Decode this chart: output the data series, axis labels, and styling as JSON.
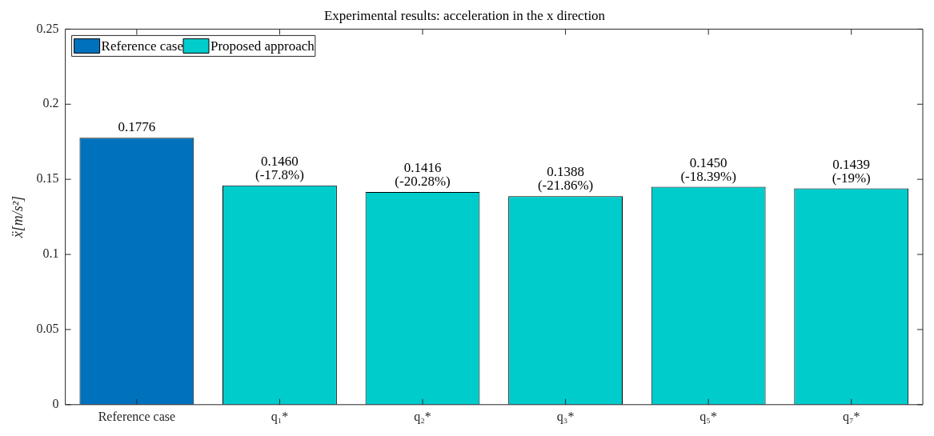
{
  "chart_data": {
    "type": "bar",
    "title": "Experimental results: acceleration in the x direction",
    "ylabel": "ẍ[m/s²]",
    "categories": [
      "Reference case",
      "q₁*",
      "q₂*",
      "q₃*",
      "q₅*",
      "q₇*"
    ],
    "series": [
      {
        "name": "Reference case",
        "color": "#0072bd",
        "values": [
          0.1776,
          null,
          null,
          null,
          null,
          null
        ],
        "value_labels": [
          "0.1776",
          null,
          null,
          null,
          null,
          null
        ]
      },
      {
        "name": "Proposed approach",
        "color": "#00cccc",
        "values": [
          null,
          0.146,
          0.1416,
          0.1388,
          0.145,
          0.1439
        ],
        "value_labels": [
          null,
          "0.1460\n(-17.8%)",
          "0.1416\n(-20.28%)",
          "0.1388\n(-21.86%)",
          "0.1450\n(-18.39%)",
          "0.1439\n(-19%)"
        ]
      }
    ],
    "ylim": [
      0,
      0.25
    ],
    "yticks": [
      0,
      0.05,
      0.1,
      0.15,
      0.2,
      0.25
    ],
    "legend": "top left"
  }
}
